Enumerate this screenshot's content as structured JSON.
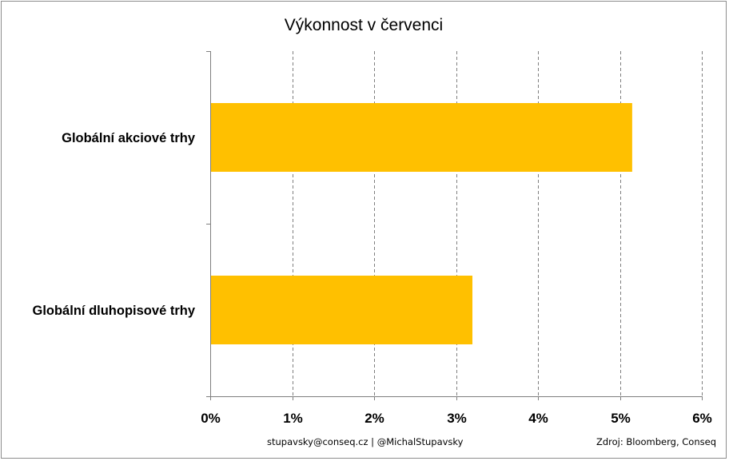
{
  "chart_data": {
    "type": "bar",
    "orientation": "horizontal",
    "title": "Výkonnost v červenci",
    "categories": [
      "Globální akciové trhy",
      "Globální dluhopisové trhy"
    ],
    "values": [
      5.15,
      3.2
    ],
    "unit": "%",
    "xlim": [
      0,
      6
    ],
    "ticks": [
      "0%",
      "1%",
      "2%",
      "3%",
      "4%",
      "5%",
      "6%"
    ],
    "tick_values": [
      0,
      1,
      2,
      3,
      4,
      5,
      6
    ],
    "grid": "vertical dashed",
    "bar_color": "#FFC000",
    "xlabel": "",
    "ylabel": ""
  },
  "footer": {
    "contact": "stupavsky@conseq.cz  |  @MichalStupavsky",
    "source": "Zdroj: Bloomberg, Conseq"
  },
  "colors": {
    "bar": "#FFC000",
    "grid": "#7f7f7f",
    "axis": "#7f7f7f"
  }
}
